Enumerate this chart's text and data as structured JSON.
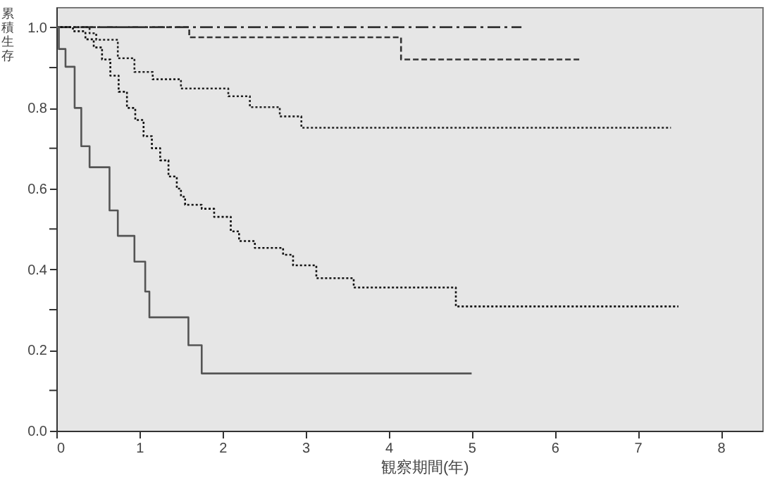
{
  "chart_data": {
    "type": "step",
    "xlabel": "観察期間(年)",
    "ylabel": "累積生存",
    "xlim": [
      0,
      8.5
    ],
    "ylim": [
      0,
      1.05
    ],
    "xticks": [
      0,
      1,
      2,
      3,
      4,
      5,
      6,
      7,
      8
    ],
    "yticks": [
      {
        "value": 0,
        "label": "0.0"
      },
      {
        "value": 0.1,
        "label": null
      },
      {
        "value": 0.2,
        "label": "0.2"
      },
      {
        "value": 0.3,
        "label": null
      },
      {
        "value": 0.4,
        "label": "0.4"
      },
      {
        "value": 0.5,
        "label": null
      },
      {
        "value": 0.6,
        "label": "0.6"
      },
      {
        "value": 0.7,
        "label": null
      },
      {
        "value": 0.8,
        "label": "0.8"
      },
      {
        "value": 0.9,
        "label": null
      },
      {
        "value": 1,
        "label": "1.0"
      }
    ],
    "grid": false,
    "series": [
      {
        "color": "#333333",
        "line_style": "dashdot",
        "x": [
          0,
          5.6
        ],
        "values": [
          1.0,
          1.0
        ]
      },
      {
        "color": "#333333",
        "line_style": "dashed",
        "x": [
          0,
          1.6,
          4.15,
          6.3
        ],
        "values": [
          1.0,
          0.975,
          0.92,
          0.92
        ]
      },
      {
        "color": "#222222",
        "line_style": "dotted",
        "x": [
          0,
          0.4,
          0.48,
          0.74,
          0.94,
          1.16,
          1.5,
          2.07,
          2.33,
          2.69,
          2.95,
          7.4
        ],
        "values": [
          1.0,
          0.985,
          0.969,
          0.923,
          0.889,
          0.871,
          0.848,
          0.829,
          0.802,
          0.779,
          0.751,
          0.751
        ]
      },
      {
        "color": "#111111",
        "line_style": "dotted",
        "x": [
          0,
          0.2,
          0.35,
          0.45,
          0.55,
          0.65,
          0.75,
          0.85,
          0.95,
          1.05,
          1.15,
          1.25,
          1.35,
          1.45,
          1.5,
          1.55,
          1.75,
          1.9,
          2.1,
          2.2,
          2.39,
          2.73,
          2.85,
          3.07,
          3.13,
          3.58,
          4.81,
          7.49
        ],
        "values": [
          1.0,
          0.99,
          0.97,
          0.95,
          0.92,
          0.88,
          0.84,
          0.8,
          0.77,
          0.73,
          0.7,
          0.67,
          0.63,
          0.6,
          0.58,
          0.56,
          0.55,
          0.53,
          0.494,
          0.47,
          0.453,
          0.436,
          0.41,
          0.41,
          0.378,
          0.355,
          0.308,
          0.308
        ]
      },
      {
        "color": "#555555",
        "line_style": "solid",
        "x": [
          0,
          0.03,
          0.11,
          0.22,
          0.3,
          0.4,
          0.64,
          0.74,
          0.94,
          1.07,
          1.12,
          1.59,
          1.75,
          5.0
        ],
        "values": [
          1.0,
          0.946,
          0.902,
          0.8,
          0.705,
          0.653,
          0.546,
          0.483,
          0.419,
          0.345,
          0.281,
          0.212,
          0.142,
          0.142
        ]
      }
    ]
  }
}
